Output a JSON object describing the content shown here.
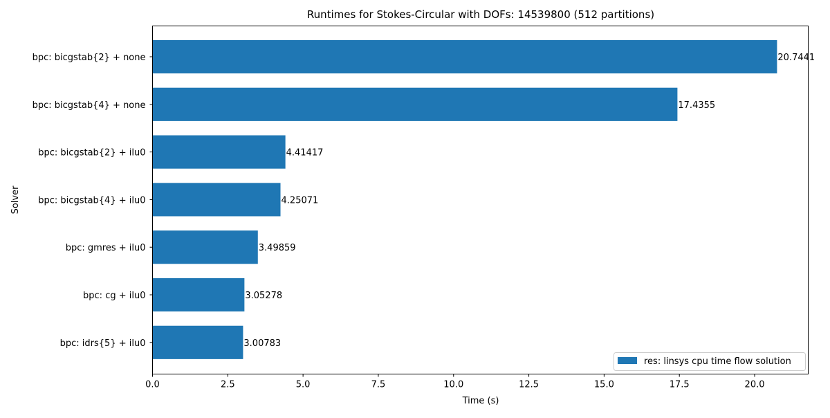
{
  "chart_data": {
    "type": "bar",
    "orientation": "horizontal",
    "title": "Runtimes for Stokes-Circular with DOFs: 14539800 (512 partitions)",
    "xlabel": "Time (s)",
    "ylabel": "Solver",
    "categories": [
      "bpc: bicgstab{2} + none",
      "bpc: bicgstab{4} + none",
      "bpc: bicgstab{2} + ilu0",
      "bpc: bicgstab{4} + ilu0",
      "bpc: gmres + ilu0",
      "bpc: cg + ilu0",
      "bpc: idrs{5} + ilu0"
    ],
    "series": [
      {
        "name": "res: linsys cpu time flow solution",
        "values": [
          20.7441,
          17.4355,
          4.41417,
          4.25071,
          3.49859,
          3.05278,
          3.00783
        ],
        "labels": [
          "20.7441",
          "17.4355",
          "4.41417",
          "4.25071",
          "3.49859",
          "3.05278",
          "3.00783"
        ],
        "color": "#1f77b4"
      }
    ],
    "xlim": [
      0,
      21.78
    ],
    "xticks": [
      0,
      2.5,
      5,
      7.5,
      10,
      12.5,
      15,
      17.5,
      20
    ],
    "xtick_labels": [
      "0.0",
      "2.5",
      "5.0",
      "7.5",
      "10.0",
      "12.5",
      "15.0",
      "17.5",
      "20.0"
    ],
    "grid": false,
    "legend_position": "lower-right"
  }
}
